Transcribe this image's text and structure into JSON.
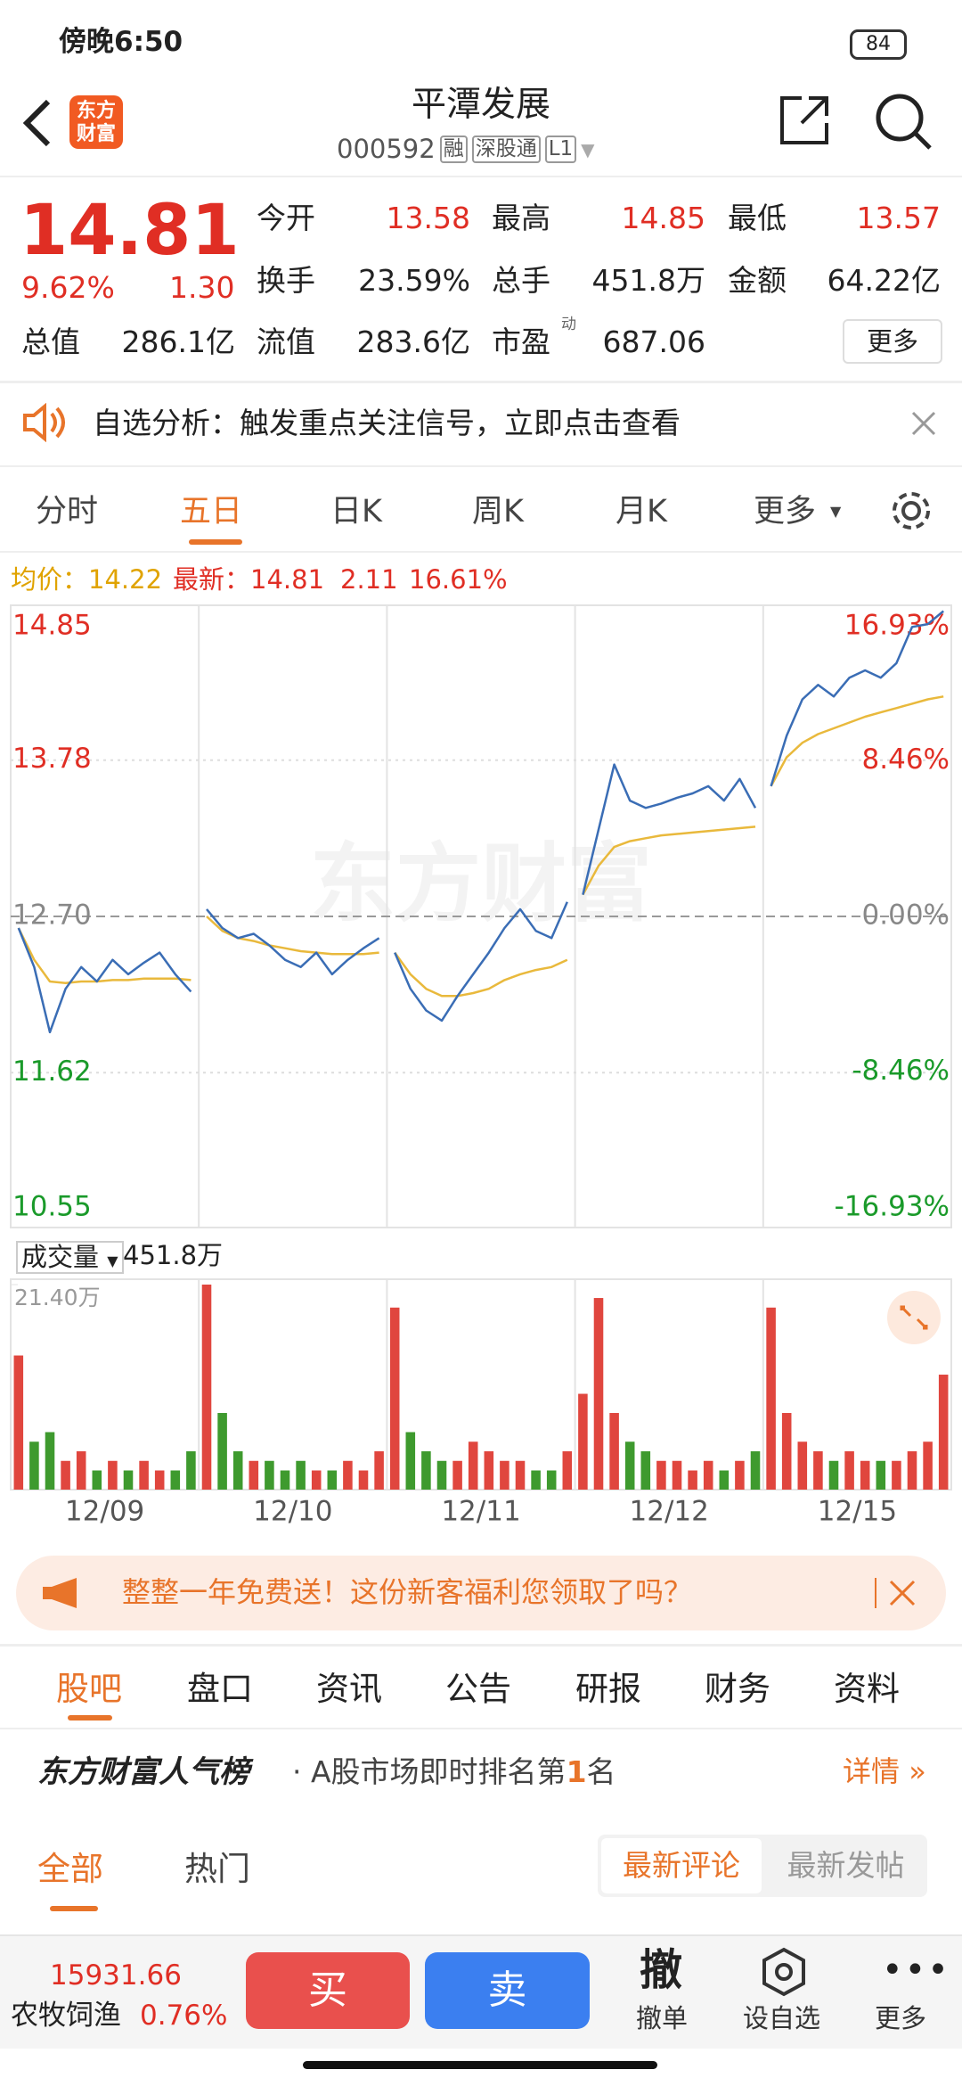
{
  "status_bar": {
    "time": "傍晚6:50",
    "battery": "84"
  },
  "header": {
    "logo": [
      "东方",
      "财富"
    ],
    "title": "平潭发展",
    "code": "000592",
    "tags": [
      "融",
      "深股通",
      "L1"
    ]
  },
  "quote": {
    "price": "14.81",
    "change_pct": "9.62%",
    "change": "1.30",
    "more": "更多",
    "fields": [
      {
        "label": "今开",
        "value": "13.58"
      },
      {
        "label": "最高",
        "value": "14.85"
      },
      {
        "label": "最低",
        "value": "13.57"
      },
      {
        "label": "换手",
        "value": "23.59%"
      },
      {
        "label": "总手",
        "value": "451.8万"
      },
      {
        "label": "金额",
        "value": "64.22亿"
      },
      {
        "label": "总值",
        "value": "286.1亿"
      },
      {
        "label": "流值",
        "value": "283.6亿"
      },
      {
        "label": "市盈",
        "sup": "动",
        "value": "687.06"
      }
    ]
  },
  "notice": {
    "text": "自选分析：触发重点关注信号，立即点击查看"
  },
  "chart_tabs": [
    "分时",
    "五日",
    "日K",
    "周K",
    "月K",
    "更多"
  ],
  "chart_data": {
    "type": "line",
    "watermark": "东方财富",
    "legend": {
      "avg": "均价：14.22",
      "latest": "最新：14.81",
      "change": "2.11",
      "change_pct": "16.61%"
    },
    "ylim": [
      10.55,
      14.85
    ],
    "yticks": [
      14.85,
      13.78,
      {
        "value": 12.7,
        "label": "12.70"
      },
      11.62,
      10.55
    ],
    "y2lim": [
      -16.93,
      16.93
    ],
    "y2ticks": [
      {
        "value": 16.93,
        "label": "16.93%"
      },
      {
        "value": 8.46,
        "label": "8.46%"
      },
      {
        "value": 0,
        "label": "0.00%"
      },
      {
        "value": -8.46,
        "label": "-8.46%"
      },
      {
        "value": -16.93,
        "label": "-16.93%"
      }
    ],
    "price_color": "#3a6db5",
    "avg_color": "#e9b93c",
    "volume_label": "成交量",
    "volume_total": "451.8万",
    "volume_ylim": [
      0,
      21.4
    ],
    "volume_yticks": [
      {
        "value": 21.4,
        "label": "21.40万"
      }
    ],
    "days": [
      {
        "date": "12/09",
        "price": [
          12.62,
          12.35,
          11.9,
          12.2,
          12.35,
          12.25,
          12.4,
          12.3,
          12.38,
          12.45,
          12.3,
          12.18
        ],
        "avg": [
          12.62,
          12.4,
          12.25,
          12.24,
          12.25,
          12.25,
          12.26,
          12.26,
          12.27,
          12.27,
          12.27,
          12.26
        ],
        "volume": [
          14,
          5,
          6,
          3,
          4,
          2,
          3,
          2,
          3,
          2,
          2,
          4
        ]
      },
      {
        "date": "12/10",
        "price": [
          12.75,
          12.62,
          12.55,
          12.58,
          12.5,
          12.4,
          12.35,
          12.45,
          12.3,
          12.4,
          12.48,
          12.55
        ],
        "avg": [
          12.7,
          12.6,
          12.55,
          12.53,
          12.5,
          12.48,
          12.46,
          12.45,
          12.44,
          12.44,
          12.44,
          12.45
        ],
        "volume": [
          21.4,
          8,
          4,
          3,
          3,
          2,
          3,
          2,
          2,
          3,
          2,
          4
        ]
      },
      {
        "date": "12/11",
        "price": [
          12.45,
          12.2,
          12.05,
          11.98,
          12.15,
          12.3,
          12.45,
          12.62,
          12.75,
          12.6,
          12.55,
          12.8
        ],
        "avg": [
          12.45,
          12.3,
          12.2,
          12.15,
          12.15,
          12.17,
          12.2,
          12.26,
          12.3,
          12.33,
          12.35,
          12.4
        ],
        "volume": [
          19,
          6,
          4,
          3,
          3,
          5,
          4,
          3,
          3,
          2,
          2,
          4
        ]
      },
      {
        "date": "12/12",
        "price": [
          12.85,
          13.3,
          13.75,
          13.5,
          13.45,
          13.48,
          13.52,
          13.55,
          13.6,
          13.5,
          13.65,
          13.45
        ],
        "avg": [
          12.85,
          13.05,
          13.18,
          13.22,
          13.24,
          13.26,
          13.27,
          13.28,
          13.29,
          13.3,
          13.31,
          13.32
        ],
        "volume": [
          10,
          20,
          8,
          5,
          4,
          3,
          3,
          2,
          3,
          2,
          3,
          4
        ]
      },
      {
        "date": "12/15",
        "price": [
          13.6,
          13.95,
          14.2,
          14.3,
          14.22,
          14.35,
          14.4,
          14.35,
          14.45,
          14.7,
          14.72,
          14.81
        ],
        "avg": [
          13.6,
          13.8,
          13.9,
          13.96,
          14,
          14.04,
          14.08,
          14.11,
          14.14,
          14.17,
          14.2,
          14.22
        ],
        "volume": [
          19,
          8,
          5,
          4,
          3,
          4,
          3,
          3,
          3,
          4,
          5,
          12
        ]
      }
    ]
  },
  "promo": {
    "text": "整整一年免费送！这份新客福利您领取了吗？"
  },
  "info_tabs": [
    "股吧",
    "盘口",
    "资讯",
    "公告",
    "研报",
    "财务",
    "资料"
  ],
  "ranking": {
    "title": "东方财富人气榜",
    "prefix": "A股市场即时排名第",
    "rank": "1",
    "suffix": "名",
    "link": "详情"
  },
  "filter": {
    "tabs": [
      "全部",
      "热门"
    ],
    "sort": [
      "最新评论",
      "最新发帖"
    ]
  },
  "bottom_bar": {
    "index_value": "15931.66",
    "sector": "农牧饲渔",
    "sector_change": "0.76%",
    "buy": "买",
    "sell": "卖",
    "cancel_icon": "撤",
    "cancel": "撤单",
    "watch": "设自选",
    "more": "更多"
  }
}
